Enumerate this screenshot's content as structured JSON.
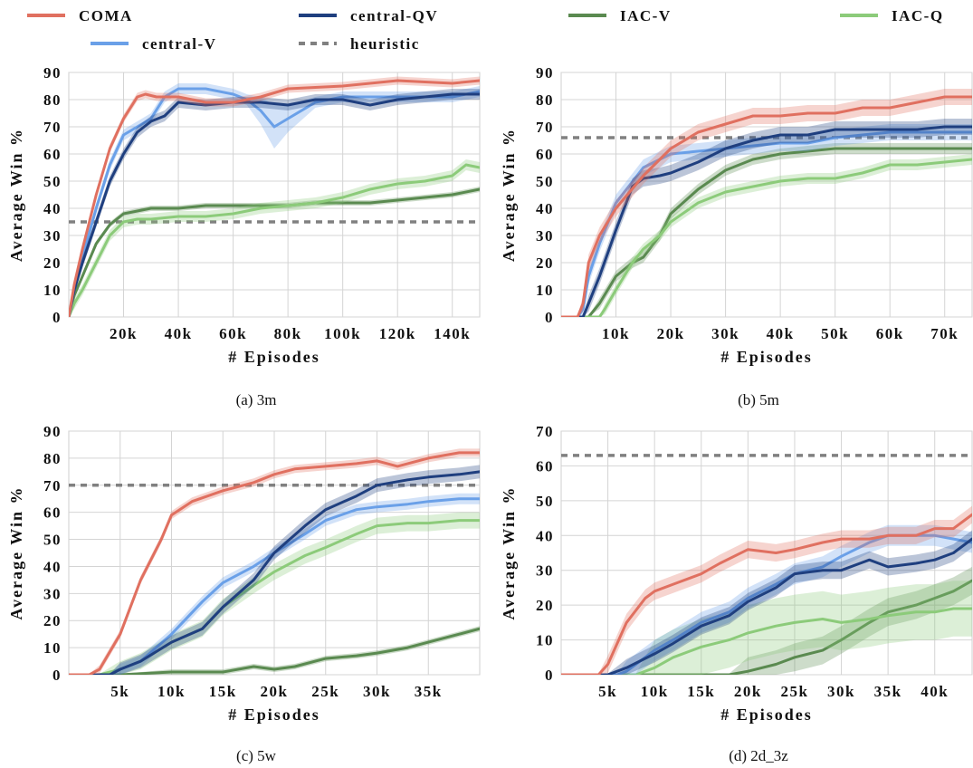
{
  "colors": {
    "COMA": "#E07060",
    "central-V": "#6AA0E8",
    "central-QV": "#1F3F7F",
    "heuristic": "#808080",
    "IAC-V": "#5A8A50",
    "IAC-Q": "#8CCB7A"
  },
  "legend": [
    {
      "key": "COMA",
      "label": "COMA",
      "style": "solid"
    },
    {
      "key": "central-QV",
      "label": "central-QV",
      "style": "solid"
    },
    {
      "key": "IAC-V",
      "label": "IAC-V",
      "style": "solid"
    },
    {
      "key": "IAC-Q",
      "label": "IAC-Q",
      "style": "solid"
    },
    {
      "key": "central-V",
      "label": "central-V",
      "style": "solid"
    },
    {
      "key": "heuristic",
      "label": "heuristic",
      "style": "dashed"
    }
  ],
  "chart_data": [
    {
      "type": "line",
      "caption": "(a) 3m",
      "xlabel": "# Episodes",
      "ylabel": "Average Win %",
      "xlim": [
        0,
        150000
      ],
      "ylim": [
        0,
        90
      ],
      "xticks": [
        20000,
        40000,
        60000,
        80000,
        100000,
        120000,
        140000
      ],
      "xtick_labels": [
        "20k",
        "40k",
        "60k",
        "80k",
        "100k",
        "120k",
        "140k"
      ],
      "yticks": [
        0,
        10,
        20,
        30,
        40,
        50,
        60,
        70,
        80,
        90
      ],
      "heuristic": 35,
      "series": [
        {
          "key": "COMA",
          "x": [
            0,
            2000,
            5000,
            10000,
            15000,
            20000,
            25000,
            28000,
            32000,
            40000,
            50000,
            60000,
            70000,
            80000,
            100000,
            120000,
            140000,
            150000
          ],
          "y": [
            0,
            12,
            25,
            45,
            62,
            73,
            81,
            82,
            81,
            81,
            79,
            79,
            81,
            84,
            85,
            87,
            86,
            87
          ],
          "band": 1.5
        },
        {
          "key": "central-V",
          "x": [
            0,
            2000,
            5000,
            10000,
            15000,
            20000,
            25000,
            30000,
            35000,
            40000,
            50000,
            60000,
            65000,
            70000,
            75000,
            80000,
            90000,
            100000,
            120000,
            140000,
            150000
          ],
          "y": [
            0,
            10,
            22,
            40,
            56,
            67,
            70,
            73,
            81,
            84,
            84,
            82,
            80,
            76,
            70,
            73,
            79,
            81,
            81,
            81,
            83
          ],
          "band": 2,
          "wide": [
            [
              65000,
              85000,
              6
            ]
          ]
        },
        {
          "key": "central-QV",
          "x": [
            0,
            2000,
            5000,
            10000,
            15000,
            20000,
            25000,
            30000,
            35000,
            40000,
            50000,
            60000,
            70000,
            80000,
            90000,
            100000,
            110000,
            120000,
            130000,
            140000,
            150000
          ],
          "y": [
            0,
            10,
            20,
            35,
            50,
            60,
            68,
            72,
            74,
            79,
            78,
            79,
            79,
            78,
            80,
            80,
            78,
            80,
            81,
            82,
            82
          ],
          "band": 2
        },
        {
          "key": "IAC-V",
          "x": [
            0,
            2000,
            5000,
            10000,
            15000,
            20000,
            25000,
            30000,
            40000,
            50000,
            60000,
            70000,
            80000,
            90000,
            100000,
            110000,
            120000,
            130000,
            140000,
            150000
          ],
          "y": [
            0,
            8,
            15,
            27,
            34,
            38,
            39,
            40,
            40,
            41,
            41,
            41,
            41,
            42,
            42,
            42,
            43,
            44,
            45,
            47
          ],
          "band": 1
        },
        {
          "key": "IAC-Q",
          "x": [
            0,
            2000,
            5000,
            10000,
            15000,
            20000,
            25000,
            30000,
            40000,
            50000,
            60000,
            70000,
            80000,
            90000,
            100000,
            110000,
            120000,
            130000,
            140000,
            145000,
            150000
          ],
          "y": [
            0,
            5,
            10,
            20,
            30,
            35,
            36,
            36,
            37,
            37,
            38,
            40,
            41,
            42,
            44,
            47,
            49,
            50,
            52,
            56,
            55
          ],
          "band": 2
        }
      ]
    },
    {
      "type": "line",
      "caption": "(b) 5m",
      "xlabel": "# Episodes",
      "ylabel": "Average Win %",
      "xlim": [
        0,
        75000
      ],
      "ylim": [
        0,
        90
      ],
      "xticks": [
        10000,
        20000,
        30000,
        40000,
        50000,
        60000,
        70000
      ],
      "xtick_labels": [
        "10k",
        "20k",
        "30k",
        "40k",
        "50k",
        "60k",
        "70k"
      ],
      "yticks": [
        0,
        10,
        20,
        30,
        40,
        50,
        60,
        70,
        80,
        90
      ],
      "heuristic": 66,
      "series": [
        {
          "key": "COMA",
          "x": [
            0,
            3000,
            4000,
            5000,
            7000,
            10000,
            15000,
            20000,
            25000,
            30000,
            35000,
            40000,
            45000,
            50000,
            55000,
            60000,
            65000,
            70000,
            75000
          ],
          "y": [
            0,
            0,
            5,
            20,
            30,
            40,
            52,
            62,
            68,
            71,
            74,
            74,
            75,
            75,
            77,
            77,
            79,
            81,
            81
          ],
          "band": 3
        },
        {
          "key": "central-V",
          "x": [
            0,
            3000,
            4000,
            5000,
            7000,
            10000,
            15000,
            20000,
            25000,
            30000,
            35000,
            40000,
            45000,
            50000,
            55000,
            60000,
            65000,
            70000,
            75000
          ],
          "y": [
            0,
            0,
            3,
            15,
            27,
            42,
            55,
            60,
            61,
            62,
            63,
            64,
            64,
            66,
            67,
            68,
            68,
            68,
            68
          ],
          "band": 3
        },
        {
          "key": "central-QV",
          "x": [
            0,
            4000,
            5000,
            7000,
            10000,
            13000,
            15000,
            18000,
            20000,
            25000,
            30000,
            35000,
            40000,
            45000,
            50000,
            55000,
            60000,
            65000,
            70000,
            75000
          ],
          "y": [
            0,
            0,
            5,
            15,
            32,
            48,
            51,
            52,
            53,
            57,
            62,
            65,
            67,
            67,
            69,
            69,
            69,
            69,
            70,
            70
          ],
          "band": 3
        },
        {
          "key": "IAC-V",
          "x": [
            0,
            5000,
            7000,
            10000,
            13000,
            15000,
            18000,
            20000,
            25000,
            30000,
            35000,
            40000,
            45000,
            50000,
            55000,
            60000,
            65000,
            70000,
            75000
          ],
          "y": [
            0,
            0,
            5,
            15,
            20,
            22,
            30,
            38,
            47,
            54,
            58,
            60,
            61,
            62,
            62,
            62,
            62,
            62,
            62
          ],
          "band": 2
        },
        {
          "key": "IAC-Q",
          "x": [
            0,
            7000,
            8000,
            10000,
            13000,
            15000,
            18000,
            20000,
            25000,
            30000,
            35000,
            40000,
            45000,
            50000,
            55000,
            60000,
            65000,
            70000,
            75000
          ],
          "y": [
            0,
            0,
            3,
            10,
            20,
            25,
            30,
            35,
            42,
            46,
            48,
            50,
            51,
            51,
            53,
            56,
            56,
            57,
            58
          ],
          "band": 2
        }
      ]
    },
    {
      "type": "line",
      "caption": "(c) 5w",
      "xlabel": "# Episodes",
      "ylabel": "Average Win %",
      "xlim": [
        0,
        40000
      ],
      "ylim": [
        0,
        90
      ],
      "xticks": [
        5000,
        10000,
        15000,
        20000,
        25000,
        30000,
        35000
      ],
      "xtick_labels": [
        "5k",
        "10k",
        "15k",
        "20k",
        "25k",
        "30k",
        "35k"
      ],
      "yticks": [
        0,
        10,
        20,
        30,
        40,
        50,
        60,
        70,
        80,
        90
      ],
      "heuristic": 70,
      "series": [
        {
          "key": "COMA",
          "x": [
            0,
            2000,
            3000,
            5000,
            7000,
            9000,
            10000,
            12000,
            15000,
            18000,
            20000,
            22000,
            25000,
            28000,
            30000,
            32000,
            35000,
            38000,
            40000
          ],
          "y": [
            0,
            0,
            2,
            15,
            35,
            50,
            59,
            64,
            68,
            71,
            74,
            76,
            77,
            78,
            79,
            77,
            80,
            82,
            82
          ],
          "band": 1.5
        },
        {
          "key": "central-V",
          "x": [
            0,
            4000,
            5000,
            7000,
            10000,
            13000,
            15000,
            18000,
            20000,
            23000,
            25000,
            28000,
            30000,
            33000,
            35000,
            38000,
            40000
          ],
          "y": [
            0,
            0,
            2,
            5,
            15,
            27,
            34,
            40,
            45,
            52,
            57,
            61,
            62,
            63,
            64,
            65,
            65
          ],
          "band": 2
        },
        {
          "key": "central-QV",
          "x": [
            0,
            4000,
            5000,
            7000,
            10000,
            13000,
            15000,
            18000,
            20000,
            23000,
            25000,
            28000,
            30000,
            33000,
            35000,
            38000,
            40000
          ],
          "y": [
            0,
            0,
            2,
            5,
            12,
            17,
            25,
            35,
            45,
            55,
            61,
            66,
            70,
            72,
            73,
            74,
            75
          ],
          "band": 2.5
        },
        {
          "key": "IAC-V",
          "x": [
            0,
            5000,
            10000,
            15000,
            18000,
            20000,
            22000,
            25000,
            28000,
            30000,
            33000,
            35000,
            38000,
            40000
          ],
          "y": [
            0,
            0,
            1,
            1,
            3,
            2,
            3,
            6,
            7,
            8,
            10,
            12,
            15,
            17
          ],
          "band": 1
        },
        {
          "key": "IAC-Q",
          "x": [
            0,
            3000,
            5000,
            7000,
            10000,
            13000,
            15000,
            18000,
            20000,
            23000,
            25000,
            28000,
            30000,
            33000,
            35000,
            38000,
            40000
          ],
          "y": [
            0,
            0,
            2,
            5,
            12,
            17,
            25,
            33,
            38,
            44,
            47,
            52,
            55,
            56,
            56,
            57,
            57
          ],
          "band": 3
        }
      ]
    },
    {
      "type": "line",
      "caption": "(d) 2d_3z",
      "xlabel": "# Episodes",
      "ylabel": "Average Win %",
      "xlim": [
        0,
        44000
      ],
      "ylim": [
        0,
        70
      ],
      "xticks": [
        5000,
        10000,
        15000,
        20000,
        25000,
        30000,
        35000,
        40000
      ],
      "xtick_labels": [
        "5k",
        "10k",
        "15k",
        "20k",
        "25k",
        "30k",
        "35k",
        "40k"
      ],
      "yticks": [
        0,
        10,
        20,
        30,
        40,
        50,
        60,
        70
      ],
      "heuristic": 63,
      "series": [
        {
          "key": "COMA",
          "x": [
            0,
            4000,
            5000,
            7000,
            9000,
            10000,
            12000,
            15000,
            17000,
            20000,
            23000,
            25000,
            28000,
            30000,
            33000,
            35000,
            38000,
            40000,
            42000,
            44000
          ],
          "y": [
            0,
            0,
            3,
            15,
            22,
            24,
            26,
            29,
            32,
            36,
            35,
            36,
            38,
            39,
            39,
            40,
            40,
            42,
            42,
            46
          ],
          "band": 2.5
        },
        {
          "key": "central-V",
          "x": [
            0,
            6000,
            7000,
            8000,
            10000,
            12000,
            15000,
            18000,
            20000,
            23000,
            25000,
            28000,
            30000,
            33000,
            35000,
            38000,
            40000,
            42000,
            44000
          ],
          "y": [
            0,
            0,
            1,
            3,
            7,
            10,
            15,
            18,
            22,
            26,
            29,
            31,
            34,
            38,
            40,
            40,
            40,
            39,
            38
          ],
          "band": 3
        },
        {
          "key": "central-QV",
          "x": [
            0,
            5000,
            7000,
            10000,
            12000,
            15000,
            18000,
            20000,
            23000,
            25000,
            28000,
            30000,
            32000,
            33000,
            35000,
            38000,
            40000,
            42000,
            44000
          ],
          "y": [
            0,
            0,
            2,
            6,
            9,
            14,
            17,
            21,
            25,
            29,
            30,
            30,
            32,
            33,
            31,
            32,
            33,
            35,
            39
          ],
          "band": 2.5
        },
        {
          "key": "IAC-V",
          "x": [
            0,
            15000,
            18000,
            20000,
            23000,
            25000,
            28000,
            30000,
            33000,
            35000,
            38000,
            40000,
            42000,
            44000
          ],
          "y": [
            0,
            0,
            0,
            1,
            3,
            5,
            7,
            10,
            15,
            18,
            20,
            22,
            24,
            27
          ],
          "band": 4
        },
        {
          "key": "IAC-Q",
          "x": [
            0,
            8000,
            10000,
            12000,
            15000,
            18000,
            20000,
            23000,
            25000,
            28000,
            30000,
            33000,
            35000,
            38000,
            40000,
            42000,
            44000
          ],
          "y": [
            0,
            0,
            2,
            5,
            8,
            10,
            12,
            14,
            15,
            16,
            15,
            16,
            17,
            18,
            18,
            19,
            19
          ],
          "band": 8
        }
      ]
    }
  ]
}
